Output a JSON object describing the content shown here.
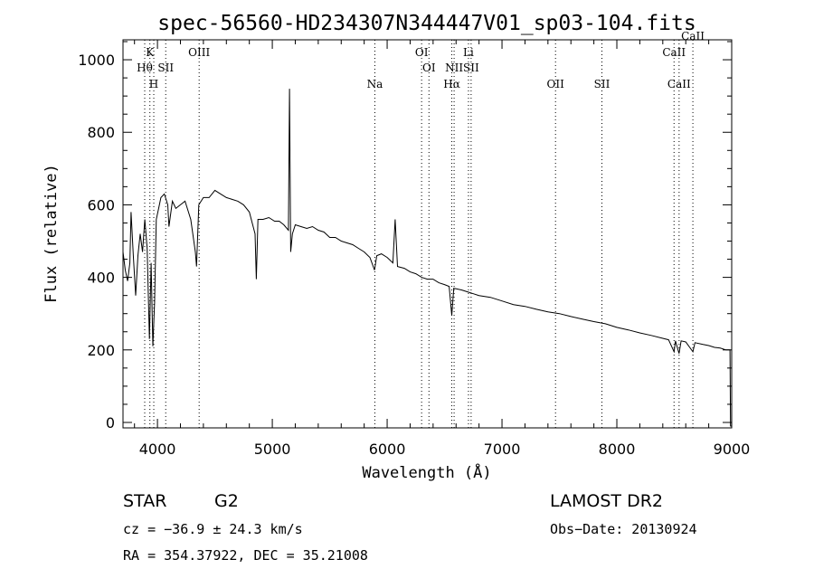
{
  "chart_data": {
    "type": "line",
    "title": "spec-56560-HD234307N344447V01_sp03-104.fits",
    "xlabel": "Wavelength (Å)",
    "ylabel": "Flux (relative)",
    "xlim": [
      3700,
      9000
    ],
    "ylim": [
      -15,
      1055
    ],
    "xticks": [
      4000,
      5000,
      6000,
      7000,
      8000,
      9000
    ],
    "yticks": [
      0,
      200,
      400,
      600,
      800,
      1000
    ],
    "series": [
      {
        "points": [
          [
            3700,
            470
          ],
          [
            3720,
            420
          ],
          [
            3740,
            390
          ],
          [
            3760,
            440
          ],
          [
            3770,
            580
          ],
          [
            3790,
            460
          ],
          [
            3810,
            350
          ],
          [
            3830,
            460
          ],
          [
            3850,
            520
          ],
          [
            3870,
            470
          ],
          [
            3890,
            560
          ],
          [
            3910,
            480
          ],
          [
            3930,
            230
          ],
          [
            3945,
            440
          ],
          [
            3960,
            210
          ],
          [
            3975,
            330
          ],
          [
            3990,
            560
          ],
          [
            4010,
            590
          ],
          [
            4030,
            620
          ],
          [
            4060,
            630
          ],
          [
            4090,
            600
          ],
          [
            4100,
            540
          ],
          [
            4130,
            610
          ],
          [
            4160,
            590
          ],
          [
            4200,
            600
          ],
          [
            4240,
            610
          ],
          [
            4290,
            560
          ],
          [
            4330,
            470
          ],
          [
            4340,
            430
          ],
          [
            4360,
            600
          ],
          [
            4400,
            620
          ],
          [
            4450,
            620
          ],
          [
            4500,
            640
          ],
          [
            4550,
            630
          ],
          [
            4600,
            620
          ],
          [
            4650,
            615
          ],
          [
            4700,
            610
          ],
          [
            4750,
            600
          ],
          [
            4800,
            580
          ],
          [
            4850,
            520
          ],
          [
            4861,
            395
          ],
          [
            4875,
            560
          ],
          [
            4920,
            560
          ],
          [
            4970,
            565
          ],
          [
            5020,
            555
          ],
          [
            5060,
            555
          ],
          [
            5100,
            545
          ],
          [
            5140,
            530
          ],
          [
            5150,
            920
          ],
          [
            5160,
            470
          ],
          [
            5175,
            520
          ],
          [
            5200,
            545
          ],
          [
            5250,
            540
          ],
          [
            5300,
            535
          ],
          [
            5350,
            540
          ],
          [
            5400,
            530
          ],
          [
            5450,
            525
          ],
          [
            5500,
            510
          ],
          [
            5550,
            510
          ],
          [
            5600,
            500
          ],
          [
            5650,
            495
          ],
          [
            5700,
            490
          ],
          [
            5750,
            480
          ],
          [
            5800,
            470
          ],
          [
            5850,
            455
          ],
          [
            5890,
            420
          ],
          [
            5910,
            460
          ],
          [
            5950,
            465
          ],
          [
            6000,
            455
          ],
          [
            6050,
            440
          ],
          [
            6070,
            560
          ],
          [
            6090,
            430
          ],
          [
            6150,
            425
          ],
          [
            6200,
            415
          ],
          [
            6250,
            410
          ],
          [
            6300,
            400
          ],
          [
            6350,
            395
          ],
          [
            6400,
            395
          ],
          [
            6450,
            385
          ],
          [
            6500,
            380
          ],
          [
            6540,
            375
          ],
          [
            6563,
            295
          ],
          [
            6580,
            370
          ],
          [
            6650,
            365
          ],
          [
            6700,
            360
          ],
          [
            6750,
            355
          ],
          [
            6800,
            350
          ],
          [
            6900,
            345
          ],
          [
            7000,
            335
          ],
          [
            7100,
            325
          ],
          [
            7200,
            320
          ],
          [
            7300,
            312
          ],
          [
            7400,
            305
          ],
          [
            7500,
            300
          ],
          [
            7600,
            292
          ],
          [
            7700,
            285
          ],
          [
            7800,
            278
          ],
          [
            7900,
            272
          ],
          [
            8000,
            262
          ],
          [
            8100,
            255
          ],
          [
            8200,
            247
          ],
          [
            8300,
            240
          ],
          [
            8400,
            232
          ],
          [
            8450,
            228
          ],
          [
            8498,
            195
          ],
          [
            8510,
            225
          ],
          [
            8542,
            190
          ],
          [
            8560,
            225
          ],
          [
            8600,
            222
          ],
          [
            8662,
            195
          ],
          [
            8680,
            220
          ],
          [
            8750,
            215
          ],
          [
            8800,
            212
          ],
          [
            8850,
            207
          ],
          [
            8900,
            205
          ],
          [
            8950,
            200
          ],
          [
            8975,
            200
          ],
          [
            8985,
            200
          ],
          [
            8990,
            -10
          ],
          [
            9000,
            -10
          ]
        ]
      }
    ],
    "lines": [
      {
        "wave": 3889,
        "label": "Hθ",
        "row": 2
      },
      {
        "wave": 3934,
        "label": "K",
        "row": 1
      },
      {
        "wave": 3968,
        "label": "H",
        "row": 3
      },
      {
        "wave": 4072,
        "label": "SII",
        "row": 2
      },
      {
        "wave": 4363,
        "label": "OIII",
        "row": 1
      },
      {
        "wave": 5893,
        "label": "Na",
        "row": 3
      },
      {
        "wave": 6300,
        "label": "OI",
        "row": 1
      },
      {
        "wave": 6364,
        "label": "OI",
        "row": 2
      },
      {
        "wave": 6563,
        "label": "Hα",
        "row": 3
      },
      {
        "wave": 6583,
        "label": "NII",
        "row": 2
      },
      {
        "wave": 6708,
        "label": "Li",
        "row": 1
      },
      {
        "wave": 6731,
        "label": "SII",
        "row": 2
      },
      {
        "wave": 7466,
        "label": "OII",
        "row": 3
      },
      {
        "wave": 7870,
        "label": "SII",
        "row": 3
      },
      {
        "wave": 8498,
        "label": "CaII",
        "row": 1
      },
      {
        "wave": 8542,
        "label": "CaII",
        "row": 3
      },
      {
        "wave": 8662,
        "label": "CaII",
        "row": 0
      }
    ]
  },
  "info": {
    "object_type": "STAR",
    "subclass": "G2",
    "survey": "LAMOST DR2",
    "cz": "cz = −36.9 ± 24.3 km/s",
    "obs_date": "Obs−Date: 20130924",
    "coords": "RA = 354.37922, DEC =  35.21008"
  }
}
